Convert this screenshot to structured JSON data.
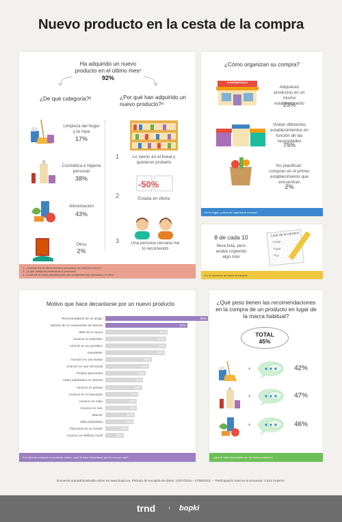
{
  "title": "Nuevo producto en la cesta de la compra",
  "p1": {
    "q": "Ha adquirido un nuevo producto en el último mes¹",
    "q_pct": "92%",
    "cat_title": "¿De qué categoría?²",
    "why_title": "¿Por qué han adquirido un nuevo producto?³",
    "categories": [
      {
        "label": "Limpieza del hogar y la ropa",
        "pct": "17%",
        "icon": "cleaning-icon"
      },
      {
        "label": "Cosmética e higiene personal",
        "pct": "38%",
        "icon": "cosmetics-icon"
      },
      {
        "label": "Alimentación",
        "pct": "43%",
        "icon": "food-icon"
      },
      {
        "label": "Otros",
        "pct": "2%",
        "icon": "other-icon"
      }
    ],
    "reasons": [
      {
        "num": "1",
        "label": "Lo vieron en el lineal y quisieron probarlo"
      },
      {
        "num": "2",
        "label": "Estaba en oferta"
      },
      {
        "num": "3",
        "label": "Una persona cercana me lo recomendó"
      }
    ],
    "discount": "-50%",
    "footnotes": [
      "1- ¿Cuándo fue la última vez que compraste un producto nuevo?",
      "2- ¿A qué categoría pertenecía el producto?",
      "3- ¿Cuál fue la razón principal para que comprases ese producto y no otro?"
    ],
    "accent": "#e9a08f"
  },
  "p2": {
    "title": "¿Cómo organizan su compra?",
    "shop_sign": "SUPERMERCADO",
    "items": [
      {
        "label": "Adquieren productos en un mismo establecimiento",
        "pct": "23%"
      },
      {
        "label": "Visitan diferentes establecimientos en función de las necesidades",
        "pct": "75%"
      },
      {
        "label": "No planifican: compran en el primer establecimiento que encuentran",
        "pct": "2%"
      }
    ],
    "footer": "En tu hogar, ¿cómo se organiza la compra?",
    "accent": "#3a87d0"
  },
  "p3": {
    "big": "8 de cada 10",
    "text": "lleva lista, pero acaba cogiendo algo más",
    "list_title": "Lista de la compra",
    "list_items": [
      "Aceite",
      "Yogur",
      "Pan"
    ],
    "footer": "En el momento de hacer la compra...",
    "accent": "#f0c73c"
  },
  "p4": {
    "title": "Motivo que hace decantarse por un nuevo producto",
    "footer": "A la hora de comprar un producto nuevo, ¿qué le hace decantarse por él y no por otro?",
    "accent": "#9b7fc0"
  },
  "chart_data": {
    "type": "bar",
    "orientation": "horizontal",
    "categories": [
      "Recomendación de un amigo",
      "Opinión de un consumidor de internet",
      "Web de la marca",
      "Anuncio en televisión",
      "Artículo en un periódico",
      "Newsletter",
      "Anuncio en una revista",
      "Anuncio en una red social",
      "Product placement",
      "Vídeo publicitario en internet",
      "Anuncio en prensa",
      "Anuncio en un buscador",
      "Anuncio en radio",
      "Anuncio en cine",
      "Banner",
      "Valla publicitaria",
      "Patrocinio de un evento",
      "Anuncio en teléfono móvil"
    ],
    "values": [
      84,
      67,
      51,
      50,
      50,
      49,
      38,
      36,
      33,
      31,
      30,
      27,
      26,
      26,
      24,
      23,
      19,
      15
    ],
    "labels": [
      "84%",
      "67%",
      "51%",
      "50%",
      "50%",
      "49%",
      "38%",
      "36%",
      "33%",
      "31%",
      "30%",
      "27%",
      "26%",
      "26%",
      "24%",
      "23%",
      "19%",
      "15%"
    ],
    "xlim": [
      0,
      100
    ],
    "colors": {
      "highlight": "#9b7fc0",
      "other": "#d8d8d8"
    }
  },
  "p5": {
    "title": "¿Qué peso tienen las recomendaciones en la compra de un producto en lugar de la marca habitual?",
    "total_label": "TOTAL",
    "total_pct": "45%",
    "plus": "+",
    "rows": [
      {
        "pct": "42%"
      },
      {
        "pct": "47%"
      },
      {
        "pct": "46%"
      }
    ],
    "footer": "¿Qué te haría decantarte por un nuevo producto?",
    "accent": "#6dbf57"
  },
  "note": "Encuesta autoadministrada online en www.bopki.es. Periodo de recogida de datos: 13/07/2015 - 17/08/2015. -- Participación total en la encuesta: 3.521 mujeres.",
  "brand": {
    "trnd": "trnd",
    "plus": "+",
    "bopki": "bopki"
  }
}
